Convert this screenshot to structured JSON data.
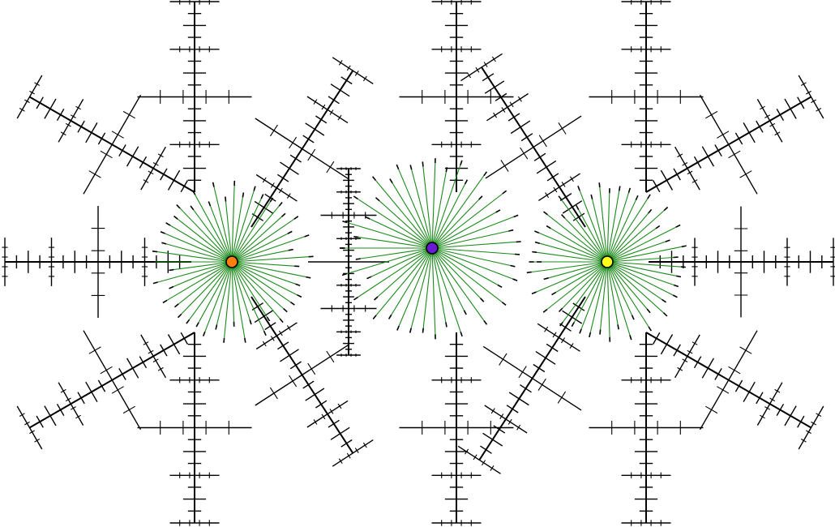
{
  "colors": {
    "background": "#ffffff",
    "fractal_stroke": "#000000",
    "link_stroke": "#1a8a1a",
    "node_outline": "#000000"
  },
  "nodes": [
    {
      "id": "orange-node",
      "fill": "#ff7f0e"
    },
    {
      "id": "purple-node",
      "fill": "#6a1bd6"
    },
    {
      "id": "yellow-node",
      "fill": "#ffff1a"
    }
  ]
}
